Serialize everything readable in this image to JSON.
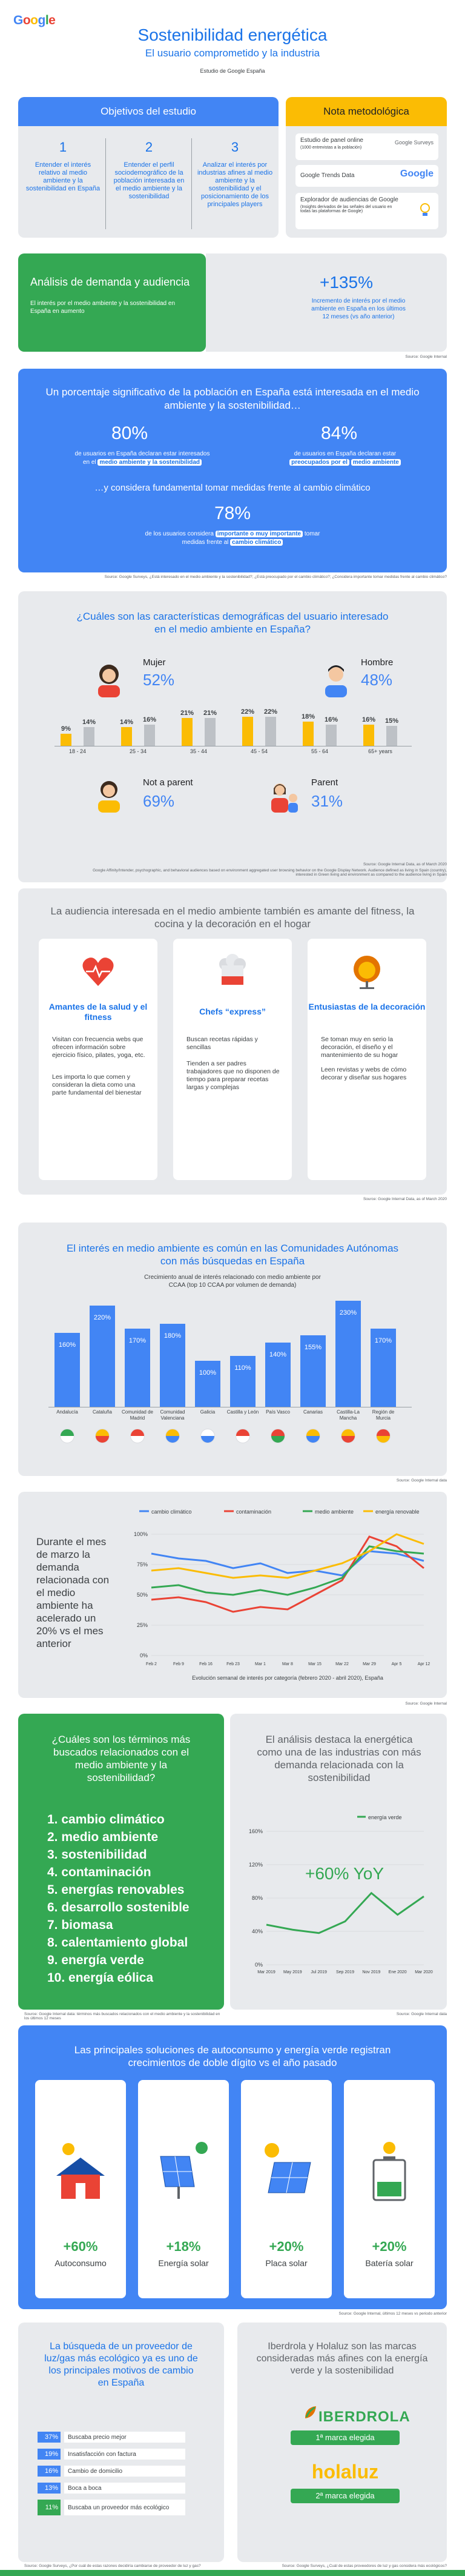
{
  "header": {
    "logo": [
      "G",
      "o",
      "o",
      "g",
      "l",
      "e"
    ],
    "title": "Sostenibilidad energética",
    "subtitle": "El usuario comprometido y la industria",
    "study": "Estudio de Google España"
  },
  "objectives": {
    "title": "Objetivos del estudio",
    "items": [
      {
        "n": "1",
        "text": "Entender el interés relativo al medio ambiente y la sostenibilidad en España"
      },
      {
        "n": "2",
        "text": "Entender el perfil sociodemográfico de la población interesada en el medio ambiente y la sostenibilidad"
      },
      {
        "n": "3",
        "text": "Analizar el interés por industrias afines al medio ambiente y la sostenibilidad y el posicionamiento de los principales players"
      }
    ]
  },
  "note": {
    "title": "Nota metodológica",
    "rows": [
      {
        "label": "Estudio de panel online",
        "detail": "(1000 entrevistas a la población)",
        "brand": "Google Surveys"
      },
      {
        "label": "Google Trends Data",
        "detail": "",
        "brand": "Google"
      },
      {
        "label": "Explorador de audiencias de Google",
        "detail": "(Insights derivados de las señales del usuario en todas las plataformas de Google)",
        "brand": ""
      }
    ]
  },
  "demand": {
    "title": "Análisis de demanda y audiencia",
    "text": "El interés por el medio ambiente y la sostenibilidad en España en aumento",
    "big": "+135%",
    "small": "Incremento de interés por el medio ambiente en España en los últimos 12 meses (vs año anterior)",
    "source": "Source: Google Internal"
  },
  "pct": {
    "title": "Un porcentaje significativo de la población en España está interesada en el medio ambiente y la sostenibilidad…",
    "a_val": "80%",
    "a_text1": "de usuarios en España declaran estar interesados en el",
    "a_hl": "medio ambiente y la sostenibilidad",
    "b_val": "84%",
    "b_text1": "de usuarios en España declaran estar",
    "b_hl": "preocupados por el",
    "b_text2": "medio ambiente",
    "mid": "…y considera fundamental tomar medidas frente al cambio climático",
    "c_val": "78%",
    "c_text1": "de los usuarios considera",
    "c_hl1": "importante o muy importante",
    "c_text2": "tomar medidas frente al",
    "c_hl2": "cambio climático",
    "source": "Source: Google Surveys, ¿Está interesado en el medio ambiente y la sostenibilidad?; ¿Está preocupado por el cambio climático?; ¿Considera importante tomar medidas frente al cambio climático?"
  },
  "demo": {
    "title": "¿Cuáles son las características demográficas del usuario interesado en el medio ambiente en España?",
    "mujer": "Mujer",
    "mujer_val": "52%",
    "hombre": "Hombre",
    "hombre_val": "48%",
    "notparent": "Not a parent",
    "notparent_val": "69%",
    "parent": "Parent",
    "parent_val": "31%",
    "source": "Source: Google Internal Data, as of March 2020",
    "source2": "Google Affinity/Intender, psychographic, and behavioral audiences based on environment aggregated user browsing behavior on the Google Display Network. Audience defined as living in Spain (country), interested in Green living and environment as compared to the audience living in Spain"
  },
  "chart_data": [
    {
      "type": "bar",
      "categories": [
        "18 - 24",
        "25 - 34",
        "35 - 44",
        "45 - 54",
        "55 - 64",
        "65+ years"
      ],
      "series": [
        {
          "name": "",
          "values": [
            9,
            14,
            21,
            22,
            18,
            16
          ]
        },
        {
          "name": "",
          "values": [
            14,
            16,
            21,
            22,
            16,
            15
          ]
        }
      ],
      "ylim": [
        0,
        25
      ]
    },
    {
      "type": "bar",
      "title": "Crecimiento anual de interés relacionado con medio ambiente por CCAA (top 10 CCAA por volumen de demanda)",
      "categories": [
        "Andalucía",
        "Cataluña",
        "Comunidad de Madrid",
        "Comunidad Valenciana",
        "Galicia",
        "Castilla y León",
        "País Vasco",
        "Canarias",
        "Castilla-La Mancha",
        "Región de Murcia"
      ],
      "values": [
        160,
        220,
        170,
        180,
        100,
        110,
        140,
        155,
        230,
        170
      ]
    },
    {
      "type": "line",
      "title": "Evolución semanal de interés por categoría (febrero 2020 - abril 2020), España",
      "categories": [
        "Feb 2",
        "Feb 9",
        "Feb 16",
        "Feb 23",
        "Mar 1",
        "Mar 8",
        "Mar 15",
        "Mar 22",
        "Mar 29",
        "Apr 5",
        "Apr 12"
      ],
      "series": [
        {
          "name": "cambio climático",
          "values": [
            84,
            80,
            78,
            72,
            76,
            68,
            70,
            66,
            86,
            84,
            78
          ]
        },
        {
          "name": "contaminación",
          "values": [
            46,
            48,
            44,
            36,
            40,
            38,
            50,
            62,
            98,
            90,
            72
          ]
        },
        {
          "name": "medio ambiente",
          "values": [
            56,
            58,
            52,
            50,
            54,
            50,
            56,
            64,
            90,
            86,
            84
          ]
        },
        {
          "name": "energía renovable",
          "values": [
            70,
            72,
            68,
            64,
            66,
            64,
            70,
            76,
            86,
            100,
            92
          ]
        }
      ],
      "ylim": [
        0,
        100
      ]
    },
    {
      "type": "line",
      "categories": [
        "Mar 2019",
        "May 2019",
        "Jul 2019",
        "Sep 2019",
        "Nov 2019",
        "Ene 2020",
        "Mar 2020"
      ],
      "series": [
        {
          "name": "energía verde",
          "values": [
            48,
            42,
            38,
            52,
            86,
            60,
            82
          ]
        }
      ],
      "ylim": [
        0,
        160
      ]
    }
  ],
  "fit": {
    "title": "La audiencia interesada en el medio ambiente también es amante del fitness, la cocina y la decoración en el hogar",
    "cards": [
      {
        "title": "Amantes de la salud y el fitness",
        "p1": "Visitan con frecuencia webs que ofrecen información sobre ejercicio físico, pilates, yoga, etc.",
        "p2": "Les importa lo que comen y consideran la dieta como una parte fundamental del bienestar"
      },
      {
        "title": "Chefs “express”",
        "p1": "Buscan recetas rápidas y sencillas",
        "p2": "Tienden a ser padres trabajadores que no disponen de tiempo para preparar recetas largas y complejas"
      },
      {
        "title": "Entusiastas de la decoración",
        "p1": "Se toman muy en serio la decoración, el diseño y el mantenimiento de su hogar",
        "p2": "Leen revistas y webs de cómo decorar y diseñar sus hogares"
      }
    ],
    "source": "Source: Google Internal Data, as of March 2020"
  },
  "cc": {
    "title": "El interés en medio ambiente es común en las Comunidades Autónomas con más búsquedas en España",
    "source": "Source: Google Internal data"
  },
  "lc": {
    "text": "Durante el mes de marzo la demanda relacionada con el medio ambiente ha acelerado un 20% vs el mes anterior",
    "source": "Source: Google Internal"
  },
  "terms": {
    "title": "¿Cuáles son los términos más buscados relacionados con el medio ambiente y la sostenibilidad?",
    "items": [
      "1. cambio climático",
      "2. medio ambiente",
      "3. sostenibilidad",
      "4. contaminación",
      "5. energías renovables",
      "6. desarrollo sostenible",
      "7. biomasa",
      "8. calentamiento global",
      "9. energía verde",
      "10. energía eólica"
    ],
    "source": "Source: Google Internal data: términos más buscados relacionados con el medio ambiente y la sostenibilidad en los últimos 12 meses"
  },
  "energ": {
    "title": "El análisis destaca la energética como una de las industrias con más demanda relacionada con la sostenibilidad",
    "legend": "energía verde",
    "big": "+60% YoY",
    "source": "Source: Google Internal data"
  },
  "sol": {
    "title": "Las principales soluciones de autoconsumo y energía verde registran crecimientos de doble dígito vs el año pasado",
    "items": [
      {
        "val": "+60%",
        "label": "Autoconsumo"
      },
      {
        "val": "+18%",
        "label": "Energía solar"
      },
      {
        "val": "+20%",
        "label": "Placa solar"
      },
      {
        "val": "+20%",
        "label": "Batería solar"
      }
    ],
    "source": "Source: Google Internal, últimos 12 meses vs periodo anterior"
  },
  "b1": {
    "title": "La búsqueda de un proveedor de luz/gas más ecológico ya es uno de los principales motivos de cambio en España",
    "rows": [
      {
        "p": "37%",
        "t": "Buscaba precio mejor"
      },
      {
        "p": "19%",
        "t": "Insatisfacción con factura"
      },
      {
        "p": "16%",
        "t": "Cambio de domicilio"
      },
      {
        "p": "13%",
        "t": "Boca a boca"
      },
      {
        "p": "11%",
        "t": "Buscaba un proveedor más ecológico"
      }
    ],
    "source": "Source: Google Surveys, ¿Por cuál de estas razones decidiría cambiarse de proveedor de luz y gas?"
  },
  "b2": {
    "title": "Iberdrola y Holaluz son las marcas consideradas más afines con la energía verde y la sostenibilidad",
    "brand1": "IBERDROLA",
    "tag1": "1ª marca elegida",
    "brand2": "holaluz",
    "tag2": "2ª marca elegida",
    "source": "Source: Google Surveys, ¿Cuál de estas proveedores de luz y gas considera más ecológicos?"
  }
}
